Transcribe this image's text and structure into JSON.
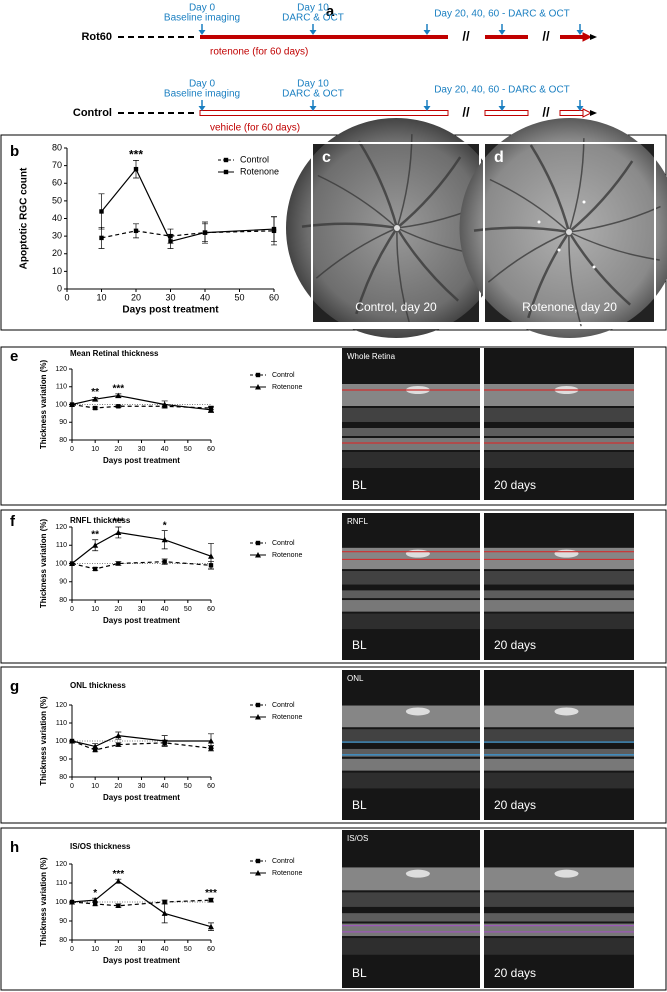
{
  "timeline": {
    "panel": "a",
    "rows": [
      {
        "label": "Rot60",
        "treatment": "rotenone (for 60 days)"
      },
      {
        "label": "Control",
        "treatment": "vehicle (for 60 days)"
      }
    ],
    "events": [
      {
        "day": "Day 0",
        "text": "Baseline imaging"
      },
      {
        "day": "Day 10",
        "text": "DARC & OCT"
      },
      {
        "text": "Day 20, 40, 60 - DARC & OCT"
      }
    ],
    "break": "//"
  },
  "fundus": [
    {
      "panel": "c",
      "caption": "Control, day 20"
    },
    {
      "panel": "d",
      "caption": "Rotenone, day 20"
    }
  ],
  "oct": {
    "baseline": "BL",
    "followup": "20 days",
    "rows": [
      {
        "layer": "Whole Retina",
        "line_color": "#d03030"
      },
      {
        "layer": "RNFL",
        "line_color": "#d03030"
      },
      {
        "layer": "ONL",
        "line_color": "#3a9ad9"
      },
      {
        "layer": "IS/OS",
        "line_color": "#9b59b6"
      }
    ]
  },
  "chart_data": [
    {
      "type": "line",
      "panel": "b",
      "y_label": "Apoptotic RGC count",
      "x_label": "Days post treatment",
      "x": [
        10,
        20,
        30,
        40,
        60
      ],
      "xlim": [
        0,
        60
      ],
      "xticks": [
        0,
        10,
        20,
        30,
        40,
        50,
        60
      ],
      "ylim": [
        0,
        80
      ],
      "yticks": [
        0,
        10,
        20,
        30,
        40,
        50,
        60,
        70,
        80
      ],
      "series": [
        {
          "name": "Control",
          "color": "#000000",
          "line_style": "dashed",
          "marker": "square",
          "values": [
            29,
            33,
            30,
            32,
            33
          ],
          "errors": [
            6,
            4,
            4,
            5,
            8
          ]
        },
        {
          "name": "Rotenone",
          "color": "#000000",
          "line_style": "solid",
          "marker": "square",
          "values": [
            44,
            68,
            27,
            32,
            34
          ],
          "errors": [
            10,
            5,
            4,
            6,
            7
          ]
        }
      ],
      "annotations": [
        {
          "x": 20,
          "text": "***"
        }
      ]
    },
    {
      "type": "line",
      "panel": "e",
      "title": "Mean Retinal thickness",
      "y_label": "Thickness variation (%)",
      "x_label": "Days post treatment",
      "x": [
        0,
        10,
        20,
        40,
        60
      ],
      "xlim": [
        0,
        60
      ],
      "xticks": [
        0,
        10,
        20,
        30,
        40,
        50,
        60
      ],
      "ylim": [
        80,
        120
      ],
      "yticks": [
        80,
        90,
        100,
        110,
        120
      ],
      "reference_line": 100,
      "series": [
        {
          "name": "Control",
          "color": "#000000",
          "line_style": "dashed",
          "marker": "square",
          "values": [
            100,
            98,
            99,
            99,
            98
          ],
          "errors": [
            0,
            0.6,
            0.6,
            0.8,
            1
          ]
        },
        {
          "name": "Rotenone",
          "color": "#000000",
          "line_style": "solid",
          "marker": "triangle",
          "values": [
            100,
            103,
            105,
            100,
            97
          ],
          "errors": [
            0,
            1,
            1,
            2,
            1.5
          ]
        }
      ],
      "annotations": [
        {
          "x": 10,
          "text": "**"
        },
        {
          "x": 20,
          "text": "***"
        }
      ]
    },
    {
      "type": "line",
      "panel": "f",
      "title": "RNFL thickness",
      "y_label": "Thickness variation (%)",
      "x_label": "Days post treatment",
      "x": [
        0,
        10,
        20,
        40,
        60
      ],
      "xlim": [
        0,
        60
      ],
      "xticks": [
        0,
        10,
        20,
        30,
        40,
        50,
        60
      ],
      "ylim": [
        80,
        120
      ],
      "yticks": [
        80,
        90,
        100,
        110,
        120
      ],
      "reference_line": 100,
      "series": [
        {
          "name": "Control",
          "color": "#000000",
          "line_style": "dashed",
          "marker": "square",
          "values": [
            100,
            97,
            100,
            101,
            99
          ],
          "errors": [
            0,
            0.8,
            1,
            1.5,
            2
          ]
        },
        {
          "name": "Rotenone",
          "color": "#000000",
          "line_style": "solid",
          "marker": "triangle",
          "values": [
            100,
            110,
            117,
            113,
            104
          ],
          "errors": [
            0,
            3,
            3,
            5,
            7
          ]
        }
      ],
      "annotations": [
        {
          "x": 10,
          "text": "**"
        },
        {
          "x": 20,
          "text": "***"
        },
        {
          "x": 40,
          "text": "*"
        }
      ]
    },
    {
      "type": "line",
      "panel": "g",
      "title": "ONL thickness",
      "y_label": "Thickness variation (%)",
      "x_label": "Days post treatment",
      "x": [
        0,
        10,
        20,
        40,
        60
      ],
      "xlim": [
        0,
        60
      ],
      "xticks": [
        0,
        10,
        20,
        30,
        40,
        50,
        60
      ],
      "ylim": [
        80,
        120
      ],
      "yticks": [
        80,
        90,
        100,
        110,
        120
      ],
      "reference_line": 100,
      "series": [
        {
          "name": "Control",
          "color": "#000000",
          "line_style": "dashed",
          "marker": "square",
          "values": [
            100,
            95,
            98,
            99,
            96
          ],
          "errors": [
            0,
            1,
            1,
            1.5,
            1.5
          ]
        },
        {
          "name": "Rotenone",
          "color": "#000000",
          "line_style": "solid",
          "marker": "triangle",
          "values": [
            100,
            97,
            103,
            100,
            100
          ],
          "errors": [
            0,
            1.5,
            2,
            3,
            4
          ]
        }
      ],
      "annotations": []
    },
    {
      "type": "line",
      "panel": "h",
      "title": "IS/OS thickness",
      "y_label": "Thickness variation (%)",
      "x_label": "Days post treatment",
      "x": [
        0,
        10,
        20,
        40,
        60
      ],
      "xlim": [
        0,
        60
      ],
      "xticks": [
        0,
        10,
        20,
        30,
        40,
        50,
        60
      ],
      "ylim": [
        80,
        120
      ],
      "yticks": [
        80,
        90,
        100,
        110,
        120
      ],
      "reference_line": 100,
      "series": [
        {
          "name": "Control",
          "color": "#000000",
          "line_style": "dashed",
          "marker": "square",
          "values": [
            100,
            99,
            98,
            100,
            101
          ],
          "errors": [
            0,
            1,
            1,
            1,
            1
          ]
        },
        {
          "name": "Rotenone",
          "color": "#000000",
          "line_style": "solid",
          "marker": "triangle",
          "values": [
            100,
            101,
            111,
            94,
            87
          ],
          "errors": [
            0,
            1,
            1,
            5,
            2
          ]
        }
      ],
      "annotations": [
        {
          "x": 10,
          "text": "*"
        },
        {
          "x": 20,
          "text": "***"
        },
        {
          "x": 60,
          "text": "***"
        }
      ]
    }
  ]
}
